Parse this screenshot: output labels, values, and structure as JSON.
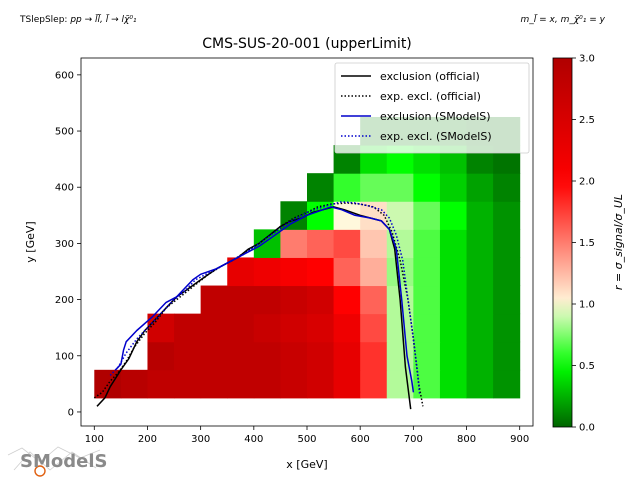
{
  "header": {
    "process_prefix": "TSlepSlep: ",
    "process_formula": "pp → l̃l̃, l̃ → lχ̃⁰₁",
    "mass_formula": "m_l̃ = x, m_χ̃⁰₁ = y"
  },
  "logo": {
    "text": "SModelS"
  },
  "chart_data": {
    "type": "heatmap",
    "title": "CMS-SUS-20-001 (upperLimit)",
    "xlabel": "x [GeV]",
    "ylabel": "y [GeV]",
    "xlim": [
      75,
      925
    ],
    "ylim": [
      -25,
      630
    ],
    "xticks": [
      100,
      200,
      300,
      400,
      500,
      600,
      700,
      800,
      900
    ],
    "yticks": [
      0,
      100,
      200,
      300,
      400,
      500,
      600
    ],
    "grid": false,
    "colorbar": {
      "label": "r = σ_signal/σ_UL",
      "min": 0.0,
      "max": 3.0,
      "ticks": [
        0.0,
        0.5,
        1.0,
        1.5,
        2.0,
        2.5,
        3.0
      ],
      "colors": [
        "#006400",
        "#00ff00",
        "#fff8dc",
        "#ff0000",
        "#b00000"
      ]
    },
    "cells": {
      "x0": 125,
      "dx": 50,
      "y0": 50,
      "dy": 50,
      "columns": [
        125,
        175,
        225,
        275,
        325,
        375,
        425,
        475,
        525,
        575,
        625,
        675,
        725,
        775,
        825,
        875
      ],
      "rows": [
        50,
        100,
        150,
        200,
        250,
        300,
        350,
        400,
        450,
        500,
        550,
        600
      ],
      "values": [
        [
          3.0,
          2.9,
          2.8,
          2.8,
          2.8,
          2.8,
          2.8,
          2.7,
          2.6,
          2.3,
          1.8,
          0.85,
          0.65,
          0.4,
          0.25,
          0.15
        ],
        [
          null,
          null,
          2.9,
          2.8,
          2.8,
          2.8,
          2.8,
          2.7,
          2.6,
          2.3,
          1.8,
          0.85,
          0.65,
          0.4,
          0.25,
          0.15
        ],
        [
          null,
          null,
          2.6,
          2.8,
          2.8,
          2.8,
          2.7,
          2.6,
          2.5,
          2.2,
          1.7,
          0.85,
          0.65,
          0.4,
          0.25,
          0.15
        ],
        [
          null,
          null,
          null,
          null,
          2.8,
          2.8,
          2.8,
          2.7,
          2.6,
          2.0,
          1.6,
          0.85,
          0.65,
          0.4,
          0.25,
          0.15
        ],
        [
          null,
          null,
          null,
          null,
          null,
          2.3,
          2.2,
          2.1,
          2.0,
          1.6,
          1.3,
          0.8,
          0.65,
          0.4,
          0.25,
          0.15
        ],
        [
          null,
          null,
          null,
          null,
          null,
          null,
          0.3,
          1.5,
          1.6,
          1.7,
          1.2,
          0.85,
          0.65,
          0.4,
          0.25,
          0.15
        ],
        [
          null,
          null,
          null,
          null,
          null,
          null,
          null,
          0.1,
          0.5,
          1.0,
          1.1,
          0.9,
          0.7,
          0.5,
          0.25,
          0.15
        ],
        [
          null,
          null,
          null,
          null,
          null,
          null,
          null,
          null,
          0.1,
          0.6,
          0.7,
          0.7,
          0.5,
          0.35,
          0.2,
          0.1
        ],
        [
          null,
          null,
          null,
          null,
          null,
          null,
          null,
          null,
          null,
          0.1,
          0.4,
          0.5,
          0.4,
          0.3,
          0.1,
          0.05
        ],
        [
          null,
          null,
          null,
          null,
          null,
          null,
          null,
          null,
          null,
          null,
          0.1,
          0.1,
          0.1,
          0.1,
          0.05,
          0.05
        ],
        [
          null,
          null,
          null,
          null,
          null,
          null,
          null,
          null,
          null,
          null,
          null,
          null,
          null,
          null,
          null,
          null
        ],
        [
          null,
          null,
          null,
          null,
          null,
          null,
          null,
          null,
          null,
          null,
          null,
          null,
          null,
          null,
          null,
          null
        ]
      ],
      "staircase": [
        [
          125,
          75
        ],
        [
          175,
          125
        ],
        [
          225,
          175
        ],
        [
          275,
          225
        ],
        [
          325,
          275
        ],
        [
          375,
          325
        ],
        [
          425,
          375
        ],
        [
          475,
          425
        ],
        [
          525,
          475
        ],
        [
          575,
          525
        ]
      ]
    },
    "series": [
      {
        "name": "exclusion (official)",
        "color": "#000000",
        "style": "solid",
        "points": [
          [
            105,
            10
          ],
          [
            120,
            25
          ],
          [
            130,
            45
          ],
          [
            140,
            60
          ],
          [
            150,
            75
          ],
          [
            165,
            95
          ],
          [
            180,
            125
          ],
          [
            195,
            145
          ],
          [
            210,
            160
          ],
          [
            225,
            175
          ],
          [
            240,
            190
          ],
          [
            255,
            205
          ],
          [
            270,
            215
          ],
          [
            285,
            225
          ],
          [
            300,
            235
          ],
          [
            315,
            245
          ],
          [
            330,
            255
          ],
          [
            350,
            265
          ],
          [
            370,
            275
          ],
          [
            390,
            290
          ],
          [
            410,
            300
          ],
          [
            430,
            315
          ],
          [
            450,
            330
          ],
          [
            470,
            340
          ],
          [
            490,
            345
          ],
          [
            510,
            355
          ],
          [
            530,
            360
          ],
          [
            550,
            365
          ],
          [
            570,
            360
          ],
          [
            600,
            350
          ],
          [
            620,
            345
          ],
          [
            640,
            340
          ],
          [
            655,
            325
          ],
          [
            665,
            290
          ],
          [
            675,
            200
          ],
          [
            685,
            80
          ],
          [
            695,
            5
          ]
        ]
      },
      {
        "name": "exp. excl. (official)",
        "color": "#000000",
        "style": "dotted",
        "points": [
          [
            100,
            25
          ],
          [
            115,
            35
          ],
          [
            130,
            55
          ],
          [
            145,
            70
          ],
          [
            160,
            90
          ],
          [
            175,
            115
          ],
          [
            195,
            140
          ],
          [
            215,
            160
          ],
          [
            235,
            185
          ],
          [
            255,
            200
          ],
          [
            275,
            215
          ],
          [
            295,
            230
          ],
          [
            315,
            245
          ],
          [
            340,
            260
          ],
          [
            360,
            270
          ],
          [
            385,
            285
          ],
          [
            410,
            300
          ],
          [
            430,
            315
          ],
          [
            450,
            330
          ],
          [
            475,
            345
          ],
          [
            500,
            355
          ],
          [
            520,
            365
          ],
          [
            545,
            370
          ],
          [
            575,
            372
          ],
          [
            600,
            370
          ],
          [
            625,
            365
          ],
          [
            645,
            350
          ],
          [
            660,
            320
          ],
          [
            675,
            270
          ],
          [
            690,
            200
          ],
          [
            700,
            130
          ],
          [
            710,
            50
          ],
          [
            718,
            10
          ]
        ]
      },
      {
        "name": "exclusion (SModelS)",
        "color": "#0000cc",
        "style": "solid",
        "points": [
          [
            140,
            75
          ],
          [
            150,
            85
          ],
          [
            155,
            110
          ],
          [
            160,
            125
          ],
          [
            180,
            145
          ],
          [
            210,
            170
          ],
          [
            235,
            195
          ],
          [
            255,
            205
          ],
          [
            285,
            235
          ],
          [
            300,
            245
          ],
          [
            330,
            255
          ],
          [
            350,
            265
          ],
          [
            380,
            280
          ],
          [
            410,
            295
          ],
          [
            440,
            315
          ],
          [
            470,
            335
          ],
          [
            500,
            350
          ],
          [
            530,
            360
          ],
          [
            545,
            365
          ],
          [
            565,
            360
          ],
          [
            590,
            350
          ],
          [
            620,
            345
          ],
          [
            640,
            340
          ],
          [
            655,
            325
          ],
          [
            668,
            290
          ],
          [
            678,
            200
          ],
          [
            688,
            100
          ],
          [
            697,
            55
          ],
          [
            700,
            35
          ]
        ]
      },
      {
        "name": "exp. excl. (SModelS)",
        "color": "#0000cc",
        "style": "dotted",
        "points": [
          [
            130,
            65
          ],
          [
            145,
            80
          ],
          [
            160,
            105
          ],
          [
            180,
            130
          ],
          [
            200,
            150
          ],
          [
            225,
            175
          ],
          [
            250,
            200
          ],
          [
            270,
            215
          ],
          [
            290,
            235
          ],
          [
            320,
            250
          ],
          [
            350,
            265
          ],
          [
            380,
            280
          ],
          [
            410,
            300
          ],
          [
            440,
            320
          ],
          [
            470,
            340
          ],
          [
            500,
            355
          ],
          [
            520,
            362
          ],
          [
            540,
            368
          ],
          [
            565,
            374
          ],
          [
            590,
            372
          ],
          [
            615,
            367
          ],
          [
            640,
            360
          ],
          [
            655,
            345
          ],
          [
            668,
            315
          ],
          [
            680,
            270
          ],
          [
            690,
            200
          ],
          [
            700,
            130
          ],
          [
            708,
            70
          ],
          [
            712,
            30
          ]
        ]
      }
    ],
    "legend": {
      "placement": "top-right",
      "entries": [
        "exclusion (official)",
        "exp. excl. (official)",
        "exclusion (SModelS)",
        "exp. excl. (SModelS)"
      ]
    }
  }
}
